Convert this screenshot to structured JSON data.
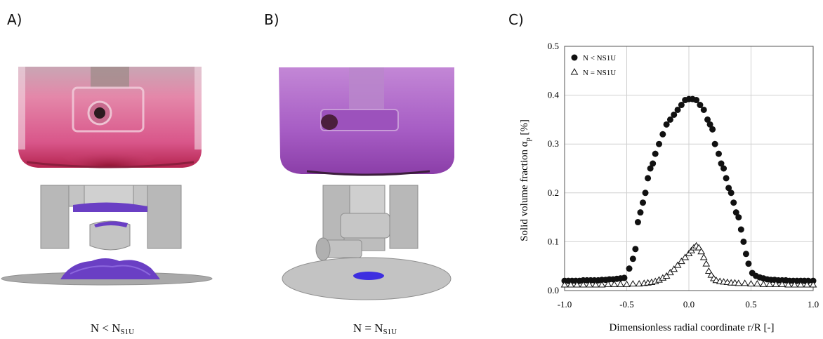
{
  "panels": {
    "a": {
      "label": "A)",
      "caption_main": "N < N",
      "caption_sub": "S1U"
    },
    "b": {
      "label": "B)",
      "caption_main": "N = N",
      "caption_sub": "S1U"
    },
    "c": {
      "label": "C)"
    }
  },
  "colors": {
    "suspension_pink": "#d94f8a",
    "suspension_purple": "#a14fc0",
    "cfd_solid": "#6a3fc4",
    "geometry_gray": "#b9b9b9"
  },
  "chart_data": {
    "type": "scatter",
    "xlabel": "Dimensionless radial coordinate r/R [-]",
    "ylabel": "Solid volume fraction α",
    "ylabel_sub": "p",
    "ylabel_unit": " [%]",
    "xlim": [
      -1.0,
      1.0
    ],
    "ylim": [
      0,
      0.5
    ],
    "xticks": [
      "-1.0",
      "-0.5",
      "0.0",
      "0.5",
      "1.0"
    ],
    "yticks": [
      "0.0",
      "0.1",
      "0.2",
      "0.3",
      "0.4",
      "0.5"
    ],
    "grid": true,
    "legend_position": "top-left",
    "series": [
      {
        "name": "N < NS1U",
        "marker": "filled-circle",
        "points": [
          [
            -1.0,
            0.02
          ],
          [
            -0.97,
            0.02
          ],
          [
            -0.94,
            0.02
          ],
          [
            -0.91,
            0.02
          ],
          [
            -0.88,
            0.02
          ],
          [
            -0.85,
            0.021
          ],
          [
            -0.82,
            0.021
          ],
          [
            -0.79,
            0.021
          ],
          [
            -0.76,
            0.021
          ],
          [
            -0.73,
            0.021
          ],
          [
            -0.7,
            0.022
          ],
          [
            -0.67,
            0.022
          ],
          [
            -0.64,
            0.023
          ],
          [
            -0.61,
            0.023
          ],
          [
            -0.58,
            0.024
          ],
          [
            -0.55,
            0.025
          ],
          [
            -0.52,
            0.026
          ],
          [
            -0.48,
            0.045
          ],
          [
            -0.45,
            0.065
          ],
          [
            -0.43,
            0.085
          ],
          [
            -0.41,
            0.14
          ],
          [
            -0.39,
            0.16
          ],
          [
            -0.37,
            0.18
          ],
          [
            -0.35,
            0.2
          ],
          [
            -0.33,
            0.23
          ],
          [
            -0.31,
            0.25
          ],
          [
            -0.29,
            0.26
          ],
          [
            -0.27,
            0.28
          ],
          [
            -0.24,
            0.3
          ],
          [
            -0.21,
            0.32
          ],
          [
            -0.18,
            0.34
          ],
          [
            -0.15,
            0.35
          ],
          [
            -0.12,
            0.36
          ],
          [
            -0.09,
            0.37
          ],
          [
            -0.06,
            0.38
          ],
          [
            -0.03,
            0.39
          ],
          [
            0.0,
            0.392
          ],
          [
            0.03,
            0.392
          ],
          [
            0.06,
            0.39
          ],
          [
            0.09,
            0.38
          ],
          [
            0.12,
            0.37
          ],
          [
            0.15,
            0.35
          ],
          [
            0.17,
            0.34
          ],
          [
            0.19,
            0.33
          ],
          [
            0.21,
            0.3
          ],
          [
            0.24,
            0.28
          ],
          [
            0.26,
            0.26
          ],
          [
            0.28,
            0.25
          ],
          [
            0.3,
            0.23
          ],
          [
            0.32,
            0.21
          ],
          [
            0.34,
            0.2
          ],
          [
            0.36,
            0.18
          ],
          [
            0.38,
            0.16
          ],
          [
            0.4,
            0.15
          ],
          [
            0.42,
            0.125
          ],
          [
            0.44,
            0.1
          ],
          [
            0.46,
            0.075
          ],
          [
            0.48,
            0.055
          ],
          [
            0.51,
            0.036
          ],
          [
            0.54,
            0.03
          ],
          [
            0.57,
            0.027
          ],
          [
            0.6,
            0.025
          ],
          [
            0.63,
            0.023
          ],
          [
            0.66,
            0.022
          ],
          [
            0.69,
            0.022
          ],
          [
            0.72,
            0.021
          ],
          [
            0.75,
            0.021
          ],
          [
            0.78,
            0.021
          ],
          [
            0.81,
            0.02
          ],
          [
            0.84,
            0.02
          ],
          [
            0.87,
            0.02
          ],
          [
            0.9,
            0.02
          ],
          [
            0.93,
            0.02
          ],
          [
            0.96,
            0.02
          ],
          [
            1.0,
            0.02
          ]
        ]
      },
      {
        "name": "N = NS1U",
        "marker": "open-triangle",
        "points": [
          [
            -1.0,
            0.012
          ],
          [
            -0.95,
            0.012
          ],
          [
            -0.9,
            0.012
          ],
          [
            -0.85,
            0.012
          ],
          [
            -0.8,
            0.012
          ],
          [
            -0.75,
            0.012
          ],
          [
            -0.7,
            0.012
          ],
          [
            -0.65,
            0.013
          ],
          [
            -0.6,
            0.013
          ],
          [
            -0.55,
            0.013
          ],
          [
            -0.5,
            0.013
          ],
          [
            -0.45,
            0.014
          ],
          [
            -0.4,
            0.014
          ],
          [
            -0.36,
            0.015
          ],
          [
            -0.33,
            0.016
          ],
          [
            -0.3,
            0.017
          ],
          [
            -0.27,
            0.019
          ],
          [
            -0.24,
            0.022
          ],
          [
            -0.21,
            0.026
          ],
          [
            -0.18,
            0.03
          ],
          [
            -0.15,
            0.037
          ],
          [
            -0.12,
            0.044
          ],
          [
            -0.09,
            0.052
          ],
          [
            -0.06,
            0.06
          ],
          [
            -0.03,
            0.068
          ],
          [
            0.0,
            0.076
          ],
          [
            0.02,
            0.082
          ],
          [
            0.04,
            0.088
          ],
          [
            0.06,
            0.092
          ],
          [
            0.08,
            0.088
          ],
          [
            0.1,
            0.08
          ],
          [
            0.12,
            0.068
          ],
          [
            0.14,
            0.055
          ],
          [
            0.16,
            0.04
          ],
          [
            0.18,
            0.032
          ],
          [
            0.2,
            0.025
          ],
          [
            0.22,
            0.021
          ],
          [
            0.25,
            0.019
          ],
          [
            0.28,
            0.018
          ],
          [
            0.31,
            0.017
          ],
          [
            0.34,
            0.016
          ],
          [
            0.37,
            0.016
          ],
          [
            0.4,
            0.015
          ],
          [
            0.45,
            0.015
          ],
          [
            0.5,
            0.014
          ],
          [
            0.55,
            0.014
          ],
          [
            0.6,
            0.013
          ],
          [
            0.65,
            0.013
          ],
          [
            0.7,
            0.013
          ],
          [
            0.75,
            0.013
          ],
          [
            0.8,
            0.012
          ],
          [
            0.85,
            0.012
          ],
          [
            0.9,
            0.012
          ],
          [
            0.95,
            0.012
          ],
          [
            1.0,
            0.012
          ]
        ]
      }
    ]
  }
}
